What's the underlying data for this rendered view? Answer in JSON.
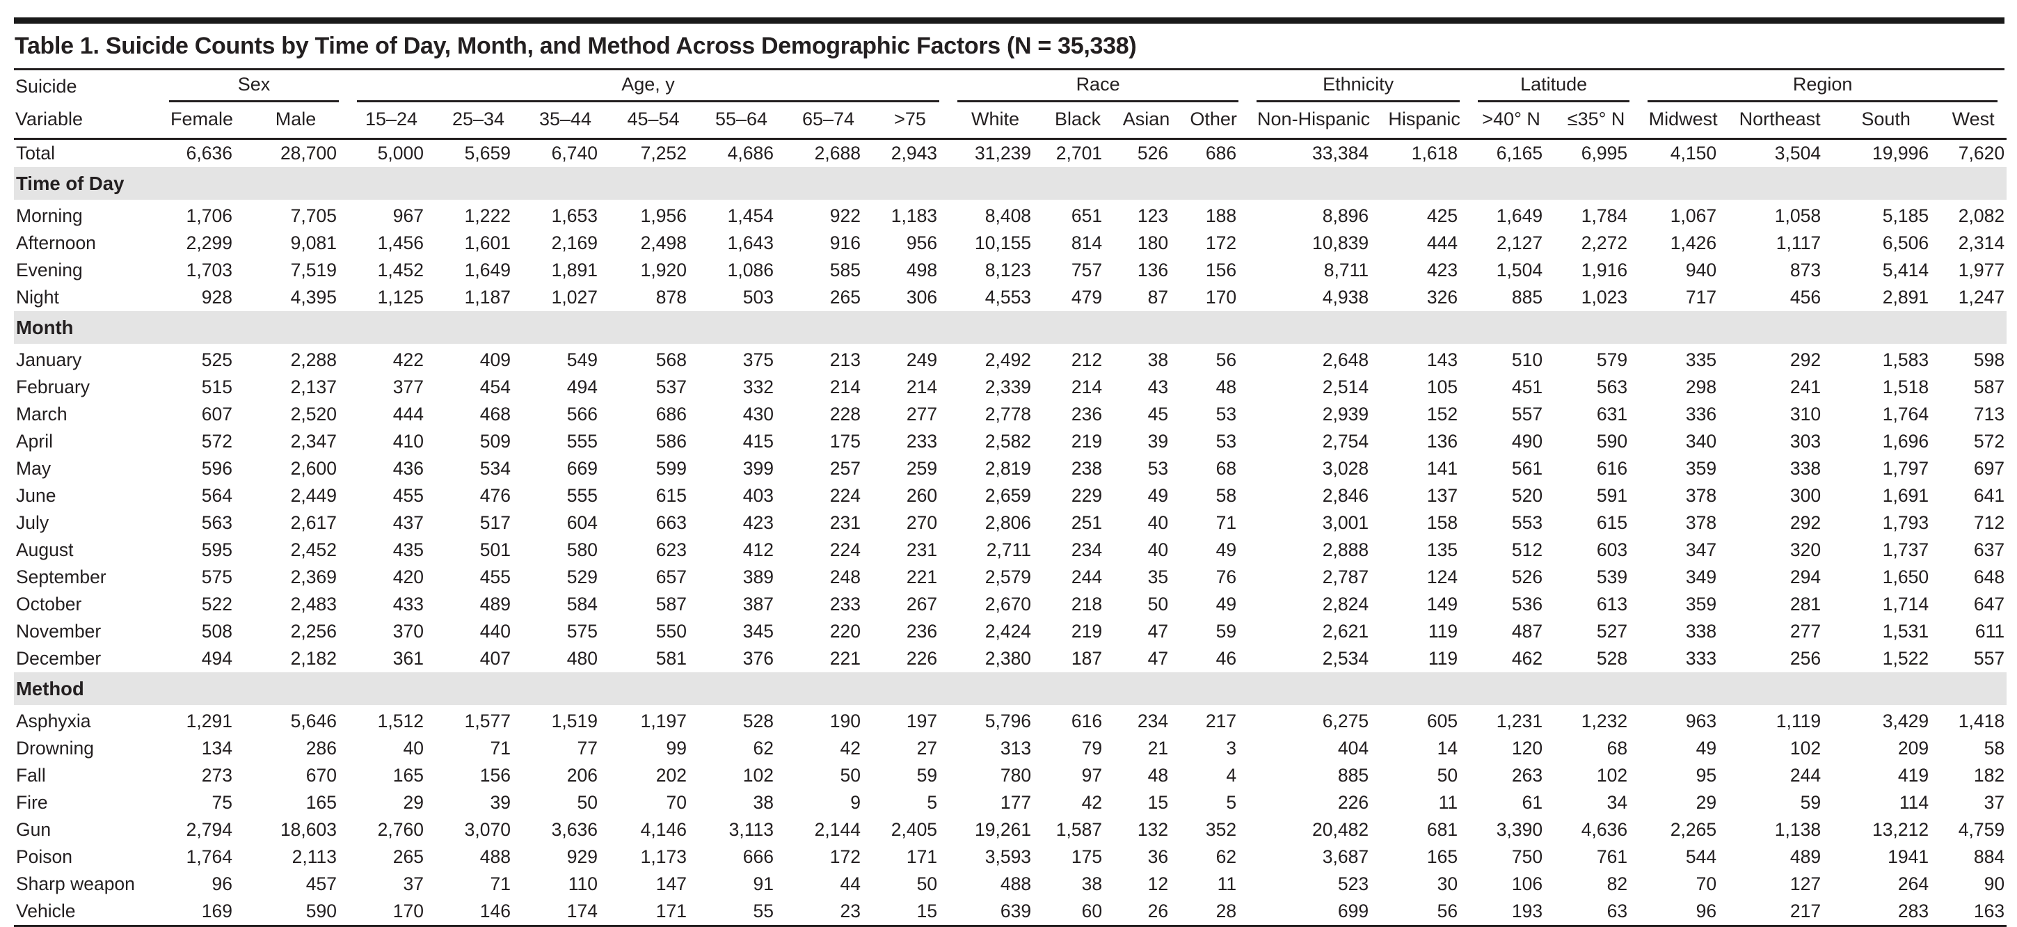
{
  "title": "Table 1. Suicide Counts by Time of Day, Month, and Method Across Demographic Factors (N = 35,338)",
  "stub_label_lines": [
    "Suicide",
    "Variable"
  ],
  "colors": {
    "text": "#231f20",
    "rule": "#231f20",
    "section_band": "#e4e4e4",
    "top_bar": "#1a1a1a"
  },
  "column_groups": [
    {
      "label": "Sex",
      "columns": [
        "Female",
        "Male"
      ]
    },
    {
      "label": "Age, y",
      "columns": [
        "15–24",
        "25–34",
        "35–44",
        "45–54",
        "55–64",
        "65–74",
        ">75"
      ]
    },
    {
      "label": "Race",
      "columns": [
        "White",
        "Black",
        "Asian",
        "Other"
      ]
    },
    {
      "label": "Ethnicity",
      "columns": [
        "Non-Hispanic",
        "Hispanic"
      ]
    },
    {
      "label": "Latitude",
      "columns": [
        ">40° N",
        "≤35° N"
      ]
    },
    {
      "label": "Region",
      "columns": [
        "Midwest",
        "Northeast",
        "South",
        "West"
      ]
    }
  ],
  "rows": [
    {
      "label": "Total",
      "values": [
        "6,636",
        "28,700",
        "5,000",
        "5,659",
        "6,740",
        "7,252",
        "4,686",
        "2,688",
        "2,943",
        "31,239",
        "2,701",
        "526",
        "686",
        "33,384",
        "1,618",
        "6,165",
        "6,995",
        "4,150",
        "3,504",
        "19,996",
        "7,620"
      ]
    },
    {
      "section": "Time of Day"
    },
    {
      "label": "Morning",
      "values": [
        "1,706",
        "7,705",
        "967",
        "1,222",
        "1,653",
        "1,956",
        "1,454",
        "922",
        "1,183",
        "8,408",
        "651",
        "123",
        "188",
        "8,896",
        "425",
        "1,649",
        "1,784",
        "1,067",
        "1,058",
        "5,185",
        "2,082"
      ]
    },
    {
      "label": "Afternoon",
      "values": [
        "2,299",
        "9,081",
        "1,456",
        "1,601",
        "2,169",
        "2,498",
        "1,643",
        "916",
        "956",
        "10,155",
        "814",
        "180",
        "172",
        "10,839",
        "444",
        "2,127",
        "2,272",
        "1,426",
        "1,117",
        "6,506",
        "2,314"
      ]
    },
    {
      "label": "Evening",
      "values": [
        "1,703",
        "7,519",
        "1,452",
        "1,649",
        "1,891",
        "1,920",
        "1,086",
        "585",
        "498",
        "8,123",
        "757",
        "136",
        "156",
        "8,711",
        "423",
        "1,504",
        "1,916",
        "940",
        "873",
        "5,414",
        "1,977"
      ]
    },
    {
      "label": "Night",
      "values": [
        "928",
        "4,395",
        "1,125",
        "1,187",
        "1,027",
        "878",
        "503",
        "265",
        "306",
        "4,553",
        "479",
        "87",
        "170",
        "4,938",
        "326",
        "885",
        "1,023",
        "717",
        "456",
        "2,891",
        "1,247"
      ]
    },
    {
      "section": "Month"
    },
    {
      "label": "January",
      "values": [
        "525",
        "2,288",
        "422",
        "409",
        "549",
        "568",
        "375",
        "213",
        "249",
        "2,492",
        "212",
        "38",
        "56",
        "2,648",
        "143",
        "510",
        "579",
        "335",
        "292",
        "1,583",
        "598"
      ]
    },
    {
      "label": "February",
      "values": [
        "515",
        "2,137",
        "377",
        "454",
        "494",
        "537",
        "332",
        "214",
        "214",
        "2,339",
        "214",
        "43",
        "48",
        "2,514",
        "105",
        "451",
        "563",
        "298",
        "241",
        "1,518",
        "587"
      ]
    },
    {
      "label": "March",
      "values": [
        "607",
        "2,520",
        "444",
        "468",
        "566",
        "686",
        "430",
        "228",
        "277",
        "2,778",
        "236",
        "45",
        "53",
        "2,939",
        "152",
        "557",
        "631",
        "336",
        "310",
        "1,764",
        "713"
      ]
    },
    {
      "label": "April",
      "values": [
        "572",
        "2,347",
        "410",
        "509",
        "555",
        "586",
        "415",
        "175",
        "233",
        "2,582",
        "219",
        "39",
        "53",
        "2,754",
        "136",
        "490",
        "590",
        "340",
        "303",
        "1,696",
        "572"
      ]
    },
    {
      "label": "May",
      "values": [
        "596",
        "2,600",
        "436",
        "534",
        "669",
        "599",
        "399",
        "257",
        "259",
        "2,819",
        "238",
        "53",
        "68",
        "3,028",
        "141",
        "561",
        "616",
        "359",
        "338",
        "1,797",
        "697"
      ]
    },
    {
      "label": "June",
      "values": [
        "564",
        "2,449",
        "455",
        "476",
        "555",
        "615",
        "403",
        "224",
        "260",
        "2,659",
        "229",
        "49",
        "58",
        "2,846",
        "137",
        "520",
        "591",
        "378",
        "300",
        "1,691",
        "641"
      ]
    },
    {
      "label": "July",
      "values": [
        "563",
        "2,617",
        "437",
        "517",
        "604",
        "663",
        "423",
        "231",
        "270",
        "2,806",
        "251",
        "40",
        "71",
        "3,001",
        "158",
        "553",
        "615",
        "378",
        "292",
        "1,793",
        "712"
      ]
    },
    {
      "label": "August",
      "values": [
        "595",
        "2,452",
        "435",
        "501",
        "580",
        "623",
        "412",
        "224",
        "231",
        "2,711",
        "234",
        "40",
        "49",
        "2,888",
        "135",
        "512",
        "603",
        "347",
        "320",
        "1,737",
        "637"
      ]
    },
    {
      "label": "September",
      "values": [
        "575",
        "2,369",
        "420",
        "455",
        "529",
        "657",
        "389",
        "248",
        "221",
        "2,579",
        "244",
        "35",
        "76",
        "2,787",
        "124",
        "526",
        "539",
        "349",
        "294",
        "1,650",
        "648"
      ]
    },
    {
      "label": "October",
      "values": [
        "522",
        "2,483",
        "433",
        "489",
        "584",
        "587",
        "387",
        "233",
        "267",
        "2,670",
        "218",
        "50",
        "49",
        "2,824",
        "149",
        "536",
        "613",
        "359",
        "281",
        "1,714",
        "647"
      ]
    },
    {
      "label": "November",
      "values": [
        "508",
        "2,256",
        "370",
        "440",
        "575",
        "550",
        "345",
        "220",
        "236",
        "2,424",
        "219",
        "47",
        "59",
        "2,621",
        "119",
        "487",
        "527",
        "338",
        "277",
        "1,531",
        "611"
      ]
    },
    {
      "label": "December",
      "values": [
        "494",
        "2,182",
        "361",
        "407",
        "480",
        "581",
        "376",
        "221",
        "226",
        "2,380",
        "187",
        "47",
        "46",
        "2,534",
        "119",
        "462",
        "528",
        "333",
        "256",
        "1,522",
        "557"
      ]
    },
    {
      "section": "Method"
    },
    {
      "label": "Asphyxia",
      "values": [
        "1,291",
        "5,646",
        "1,512",
        "1,577",
        "1,519",
        "1,197",
        "528",
        "190",
        "197",
        "5,796",
        "616",
        "234",
        "217",
        "6,275",
        "605",
        "1,231",
        "1,232",
        "963",
        "1,119",
        "3,429",
        "1,418"
      ]
    },
    {
      "label": "Drowning",
      "values": [
        "134",
        "286",
        "40",
        "71",
        "77",
        "99",
        "62",
        "42",
        "27",
        "313",
        "79",
        "21",
        "3",
        "404",
        "14",
        "120",
        "68",
        "49",
        "102",
        "209",
        "58"
      ]
    },
    {
      "label": "Fall",
      "values": [
        "273",
        "670",
        "165",
        "156",
        "206",
        "202",
        "102",
        "50",
        "59",
        "780",
        "97",
        "48",
        "4",
        "885",
        "50",
        "263",
        "102",
        "95",
        "244",
        "419",
        "182"
      ]
    },
    {
      "label": "Fire",
      "values": [
        "75",
        "165",
        "29",
        "39",
        "50",
        "70",
        "38",
        "9",
        "5",
        "177",
        "42",
        "15",
        "5",
        "226",
        "11",
        "61",
        "34",
        "29",
        "59",
        "114",
        "37"
      ]
    },
    {
      "label": "Gun",
      "values": [
        "2,794",
        "18,603",
        "2,760",
        "3,070",
        "3,636",
        "4,146",
        "3,113",
        "2,144",
        "2,405",
        "19,261",
        "1,587",
        "132",
        "352",
        "20,482",
        "681",
        "3,390",
        "4,636",
        "2,265",
        "1,138",
        "13,212",
        "4,759"
      ]
    },
    {
      "label": "Poison",
      "values": [
        "1,764",
        "2,113",
        "265",
        "488",
        "929",
        "1,173",
        "666",
        "172",
        "171",
        "3,593",
        "175",
        "36",
        "62",
        "3,687",
        "165",
        "750",
        "761",
        "544",
        "489",
        "1941",
        "884"
      ]
    },
    {
      "label": "Sharp weapon",
      "values": [
        "96",
        "457",
        "37",
        "71",
        "110",
        "147",
        "91",
        "44",
        "50",
        "488",
        "38",
        "12",
        "11",
        "523",
        "30",
        "106",
        "82",
        "70",
        "127",
        "264",
        "90"
      ]
    },
    {
      "label": "Vehicle",
      "values": [
        "169",
        "590",
        "170",
        "146",
        "174",
        "171",
        "55",
        "23",
        "15",
        "639",
        "60",
        "26",
        "28",
        "699",
        "56",
        "193",
        "63",
        "96",
        "217",
        "283",
        "163"
      ]
    }
  ]
}
